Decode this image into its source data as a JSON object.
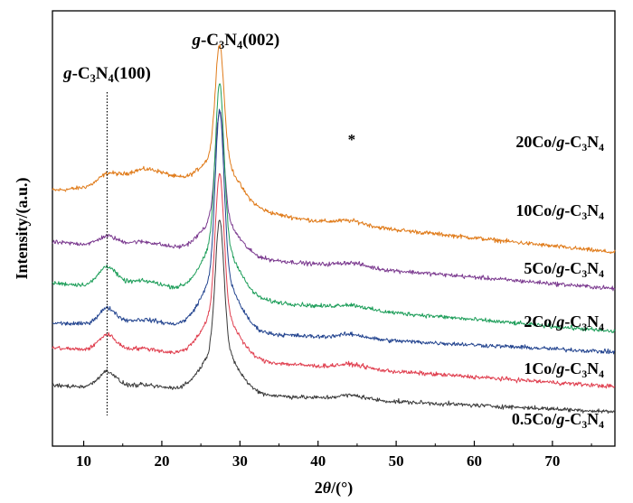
{
  "chart_data": {
    "type": "line",
    "xlabel": {
      "text": "2θ/(°)",
      "prefix": "2",
      "italic": "θ",
      "suffix": "/(°)"
    },
    "ylabel": "Intensity/(a.u.)",
    "xlim": [
      6,
      78
    ],
    "xticks": [
      10,
      20,
      30,
      40,
      50,
      60,
      70
    ],
    "yticks": "none",
    "grid": false,
    "reference_line": {
      "x": 13,
      "style": "dotted",
      "color": "#000000"
    },
    "annotations": [
      {
        "text": "g-C3N4(100)",
        "pre": "",
        "italic": "g",
        "mid": "-C",
        "sub1": "3",
        "mid2": "N",
        "sub2": "4",
        "post": "(100)",
        "at_x": 13
      },
      {
        "text": "g-C3N4(002)",
        "pre": "",
        "italic": "g",
        "mid": "-C",
        "sub1": "3",
        "mid2": "N",
        "sub2": "4",
        "post": "(002)",
        "at_x": 27.4
      },
      {
        "text": "*",
        "at_x": 44.3,
        "series": "20Co/g-C3N4"
      }
    ],
    "series": [
      {
        "name": "20Co/g-C3N4",
        "prefix": "20Co/",
        "color": "#e07b1a",
        "baseline": 3.66,
        "end": 2.54,
        "peak002": 2.14,
        "peak100": 0.16,
        "broad": 0.52,
        "mid": 0.16
      },
      {
        "name": "10Co/g-C3N4",
        "prefix": "10Co/",
        "color": "#7b3a8f",
        "baseline": 2.73,
        "end": 1.85,
        "peak002": 2.02,
        "peak100": 0.16,
        "broad": 0.06,
        "mid": 0.1
      },
      {
        "name": "5Co/g-C3N4",
        "prefix": "5Co/",
        "color": "#1e9e5a",
        "baseline": 1.95,
        "end": 1.03,
        "peak002": 3.0,
        "peak100": 0.36,
        "broad": 0.06,
        "mid": 0.14
      },
      {
        "name": "2Co/g-C3N4",
        "prefix": "2Co/",
        "color": "#23448f",
        "baseline": 1.19,
        "end": 0.64,
        "peak002": 3.11,
        "peak100": 0.3,
        "broad": 0.04,
        "mid": 0.12
      },
      {
        "name": "1Co/g-C3N4",
        "prefix": "1Co/",
        "color": "#e04050",
        "baseline": 0.72,
        "end": -0.02,
        "peak002": 2.62,
        "peak100": 0.3,
        "broad": 0.02,
        "mid": 0.09
      },
      {
        "name": "0.5Co/g-C3N4",
        "prefix": "0.5Co/",
        "color": "#3a3a3a",
        "baseline": 0.0,
        "end": -0.5,
        "peak002": 2.46,
        "peak100": 0.3,
        "broad": 0.02,
        "mid": 0.07
      }
    ],
    "label_suffix": {
      "italic": "g",
      "mid": "-C",
      "sub1": "3",
      "mid2": "N",
      "sub2": "4"
    }
  }
}
